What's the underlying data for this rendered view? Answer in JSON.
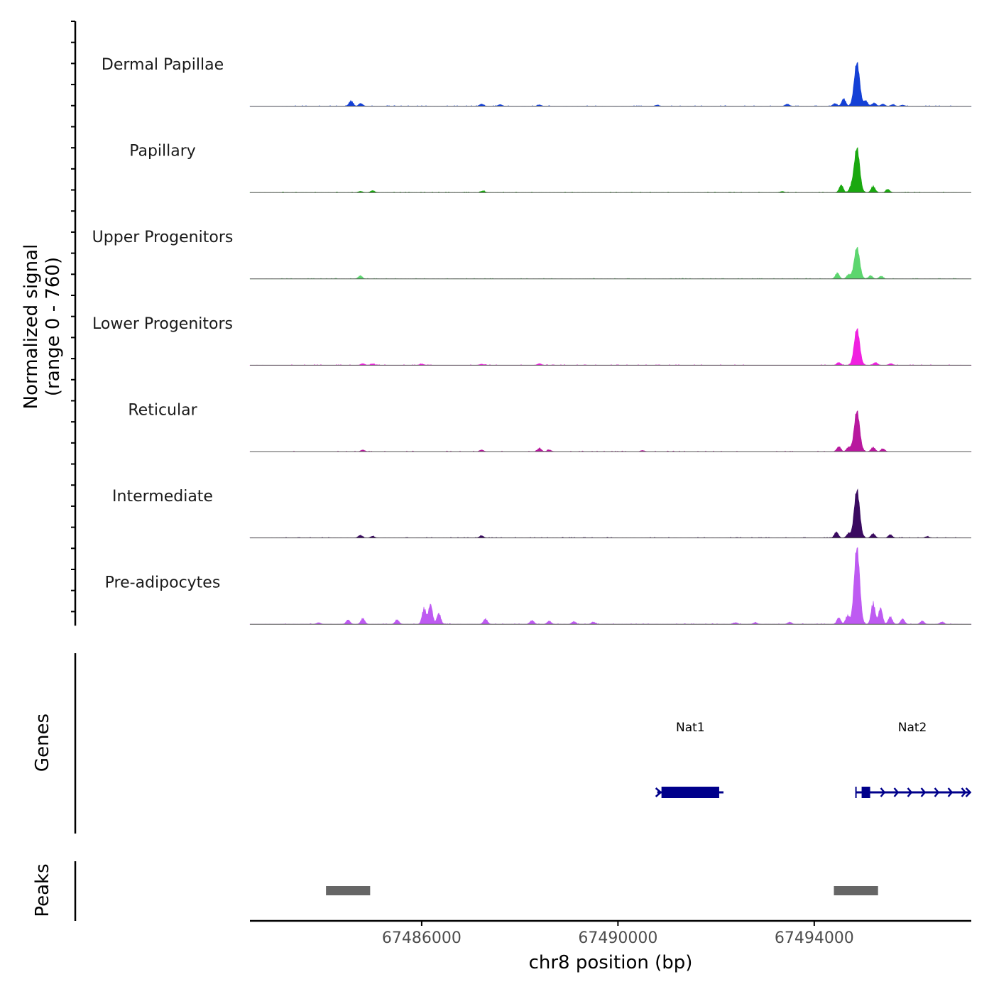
{
  "chart_data": {
    "type": "area",
    "title": "",
    "xlabel": "chr8 position (bp)",
    "ylabel_line1": "Normalized signal",
    "ylabel_line2": "(range 0 - 760)",
    "xlim": [
      67482500,
      67497200
    ],
    "x_ticks": [
      {
        "value": 67486000,
        "label": "67486000"
      },
      {
        "value": 67490000,
        "label": "67490000"
      },
      {
        "value": 67494000,
        "label": "67494000"
      }
    ],
    "y_range": [
      0,
      760
    ],
    "series": [
      {
        "name": "Dermal Papillae",
        "color": "#1440D6",
        "peak": 430,
        "minor": [
          [
            67484560,
            50
          ],
          [
            67484760,
            25
          ],
          [
            67487220,
            20
          ],
          [
            67487600,
            15
          ],
          [
            67488400,
            12
          ],
          [
            67490800,
            10
          ],
          [
            67493450,
            20
          ],
          [
            67494420,
            25
          ],
          [
            67494600,
            70
          ],
          [
            67495050,
            50
          ],
          [
            67495220,
            30
          ],
          [
            67495400,
            20
          ],
          [
            67495600,
            15
          ],
          [
            67495800,
            10
          ]
        ]
      },
      {
        "name": "Papillary",
        "color": "#1AA80F",
        "peak": 440,
        "minor": [
          [
            67484750,
            12
          ],
          [
            67485000,
            18
          ],
          [
            67487250,
            15
          ],
          [
            67493350,
            10
          ],
          [
            67494550,
            70
          ],
          [
            67494750,
            45
          ],
          [
            67495200,
            60
          ],
          [
            67495500,
            30
          ]
        ]
      },
      {
        "name": "Upper Progenitors",
        "color": "#5CD66E",
        "peak": 310,
        "minor": [
          [
            67484750,
            30
          ],
          [
            67494470,
            55
          ],
          [
            67494700,
            40
          ],
          [
            67495150,
            30
          ],
          [
            67495360,
            25
          ]
        ]
      },
      {
        "name": "Lower Progenitors",
        "color": "#F020E0",
        "peak": 360,
        "minor": [
          [
            67484800,
            15
          ],
          [
            67485000,
            12
          ],
          [
            67486000,
            12
          ],
          [
            67487220,
            10
          ],
          [
            67488400,
            15
          ],
          [
            67494500,
            25
          ],
          [
            67495250,
            25
          ],
          [
            67495560,
            15
          ]
        ]
      },
      {
        "name": "Reticular",
        "color": "#B8189E",
        "peak": 400,
        "minor": [
          [
            67484800,
            15
          ],
          [
            67487220,
            15
          ],
          [
            67488400,
            30
          ],
          [
            67488600,
            15
          ],
          [
            67490500,
            10
          ],
          [
            67494500,
            45
          ],
          [
            67494700,
            40
          ],
          [
            67495200,
            40
          ],
          [
            67495400,
            25
          ]
        ]
      },
      {
        "name": "Intermediate",
        "color": "#3A0A60",
        "peak": 470,
        "minor": [
          [
            67484750,
            25
          ],
          [
            67485000,
            15
          ],
          [
            67487220,
            20
          ],
          [
            67494450,
            55
          ],
          [
            67494700,
            40
          ],
          [
            67495200,
            40
          ],
          [
            67495550,
            30
          ],
          [
            67496300,
            12
          ]
        ]
      },
      {
        "name": "Pre-adipocytes",
        "color": "#BE5AF2",
        "peak": 760,
        "minor": [
          [
            67483900,
            15
          ],
          [
            67484500,
            40
          ],
          [
            67484800,
            55
          ],
          [
            67485500,
            40
          ],
          [
            67486050,
            150
          ],
          [
            67486180,
            185
          ],
          [
            67486350,
            100
          ],
          [
            67487300,
            50
          ],
          [
            67488250,
            35
          ],
          [
            67488600,
            30
          ],
          [
            67489100,
            25
          ],
          [
            67489500,
            20
          ],
          [
            67492400,
            15
          ],
          [
            67492800,
            15
          ],
          [
            67493500,
            20
          ],
          [
            67494500,
            60
          ],
          [
            67494680,
            80
          ],
          [
            67495200,
            200
          ],
          [
            67495350,
            150
          ],
          [
            67495550,
            70
          ],
          [
            67495800,
            50
          ],
          [
            67496200,
            30
          ],
          [
            67496600,
            20
          ]
        ]
      }
    ],
    "genes": [
      {
        "name": "Nat1",
        "start": 67490800,
        "end": 67492150,
        "strand": "+"
      },
      {
        "name": "Nat2",
        "start": 67494850,
        "end": 67497150,
        "strand": "+"
      }
    ],
    "peaks": [
      {
        "start": 67484050,
        "end": 67484950
      },
      {
        "start": 67494400,
        "end": 67495300
      }
    ],
    "track_labels": {
      "genes": "Genes",
      "peaks": "Peaks"
    },
    "colors": {
      "gene": "#00008B",
      "peak": "#666666",
      "axis": "#000000",
      "baseline": "#555555",
      "tick_text": "#4D4D4D"
    }
  }
}
